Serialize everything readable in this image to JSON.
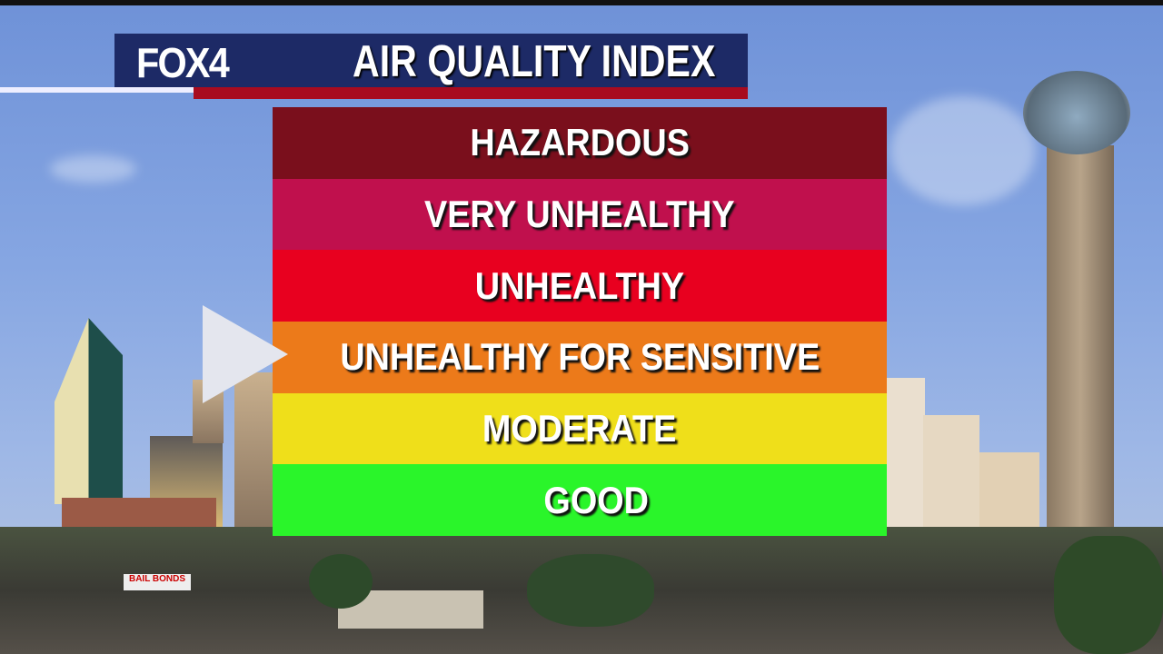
{
  "header": {
    "logo": "FOX4",
    "title": "AIR QUALITY INDEX"
  },
  "levels": [
    {
      "label": "HAZARDOUS",
      "color": "#7a0f1c"
    },
    {
      "label": "VERY UNHEALTHY",
      "color": "#c0104d"
    },
    {
      "label": "UNHEALTHY",
      "color": "#e8001f"
    },
    {
      "label": "UNHEALTHY FOR SENSITIVE",
      "color": "#ec7a1a"
    },
    {
      "label": "MODERATE",
      "color": "#efdf1a"
    },
    {
      "label": "GOOD",
      "color": "#2af52a"
    }
  ],
  "indicator": {
    "current_level": "UNHEALTHY FOR SENSITIVE",
    "color": "#e4e6ee"
  },
  "background_sign": "BAIL BONDS"
}
